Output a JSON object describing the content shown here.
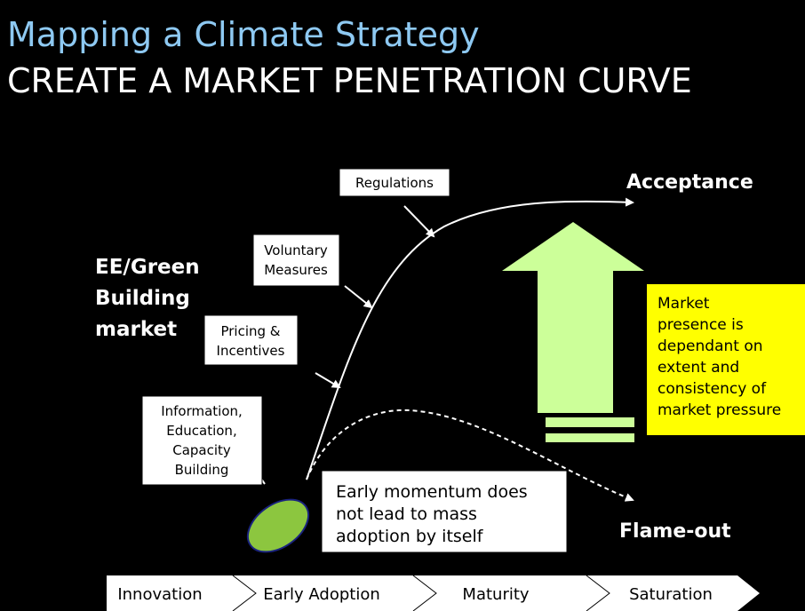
{
  "header": {
    "title": "Mapping a Climate Strategy",
    "subtitle": "CREATE A MARKET PENETRATION CURVE"
  },
  "market_label": [
    "EE/Green",
    "Building",
    "market"
  ],
  "drivers": [
    {
      "lines": [
        "Regulations"
      ]
    },
    {
      "lines": [
        "Voluntary",
        "Measures"
      ]
    },
    {
      "lines": [
        "Pricing &",
        "Incentives"
      ]
    },
    {
      "lines": [
        "Information,",
        "Education,",
        "Capacity",
        "Building"
      ]
    }
  ],
  "outcomes": {
    "success": "Acceptance",
    "failure": "Flame-out"
  },
  "momentum_note": [
    "Early momentum does",
    "not lead to mass",
    "adoption by itself"
  ],
  "pressure_note": [
    "Market",
    "presence is",
    "dependant on",
    "extent and",
    "consistency of",
    "market pressure"
  ],
  "phases": [
    "Innovation",
    "Early Adoption",
    "Maturity",
    "Saturation"
  ]
}
